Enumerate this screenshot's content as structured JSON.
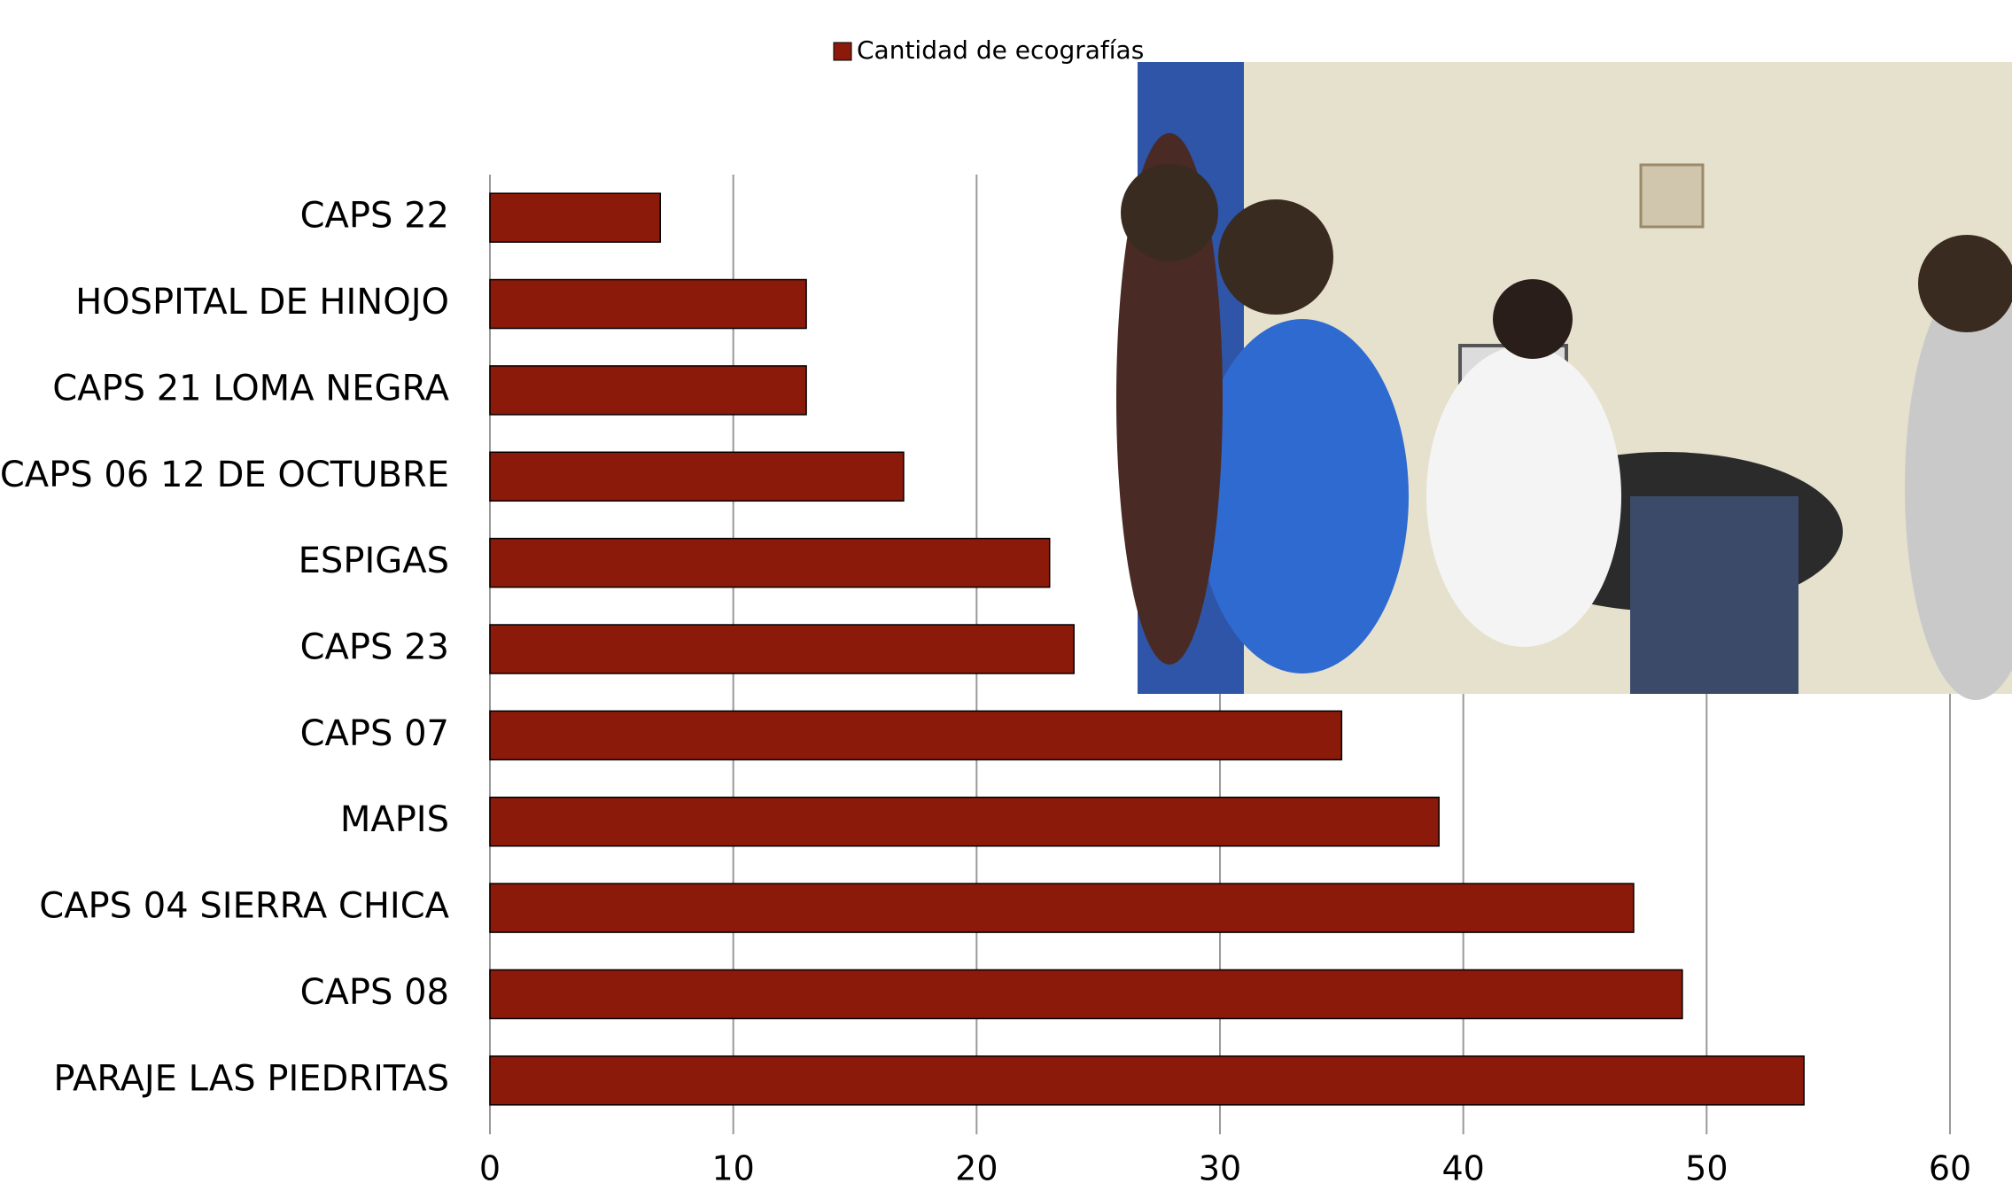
{
  "chart_data": {
    "type": "bar",
    "orientation": "horizontal",
    "categories": [
      "CAPS 22",
      "HOSPITAL DE HINOJO",
      "CAPS 21 LOMA NEGRA",
      "CAPS 06 12 DE OCTUBRE",
      "ESPIGAS",
      "CAPS 23",
      "CAPS 07",
      "MAPIS",
      "CAPS 04 SIERRA CHICA",
      "CAPS 08",
      "PARAJE LAS PIEDRITAS"
    ],
    "series": [
      {
        "name": "Cantidad de ecografías",
        "color": "#8b1a0a",
        "values": [
          7,
          13,
          13,
          17,
          23,
          24,
          35,
          39,
          47,
          49,
          54
        ]
      }
    ],
    "xlim": [
      0,
      60
    ],
    "xticks": [
      0,
      10,
      20,
      30,
      40,
      50,
      60
    ],
    "grid": true,
    "legend": "top"
  }
}
